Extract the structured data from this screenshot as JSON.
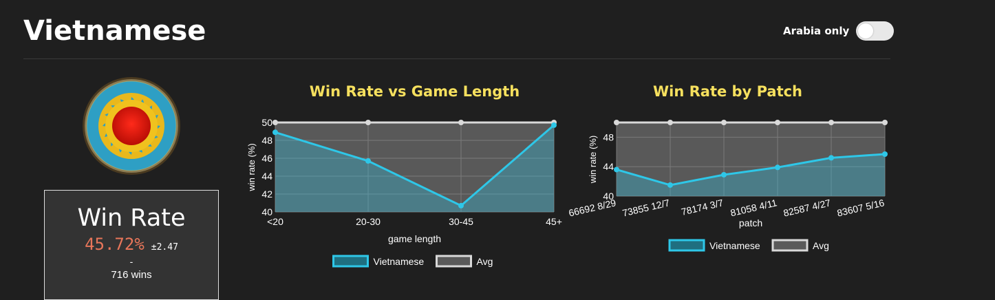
{
  "header": {
    "title": "Vietnamese",
    "toggle_label": "Arabia only",
    "toggle_on": false
  },
  "summary": {
    "heading": "Win Rate",
    "win_rate": "45.72%",
    "error": "±2.47",
    "dash": "-",
    "wins": "716 wins"
  },
  "colors": {
    "series": "#2ec7e8",
    "avg": "#d9d9d9",
    "title": "#f6e05e",
    "win_rate": "#e8765a"
  },
  "emblem": {
    "icon": "vietnamese-emblem-icon"
  },
  "chart_data": [
    {
      "type": "line",
      "title": "Win Rate vs Game Length",
      "xlabel": "game length",
      "ylabel": "win rate (%)",
      "categories": [
        "<20",
        "20-30",
        "30-45",
        "45+"
      ],
      "ylim": [
        40,
        50
      ],
      "yticks": [
        40,
        42,
        44,
        46,
        48,
        50
      ],
      "series": [
        {
          "name": "Vietnamese",
          "values": [
            48.9,
            45.7,
            40.7,
            49.7
          ]
        },
        {
          "name": "Avg",
          "values": [
            50,
            50,
            50,
            50
          ]
        }
      ],
      "legend": "bottom",
      "grid": true
    },
    {
      "type": "line",
      "title": "Win Rate by Patch",
      "xlabel": "patch",
      "ylabel": "win rate (%)",
      "categories": [
        "66692 8/29",
        "73855 12/7",
        "78174 3/7",
        "81058 4/11",
        "82587 4/27",
        "83607 5/16"
      ],
      "ylim": [
        40,
        50
      ],
      "yticks": [
        40,
        44,
        48
      ],
      "series": [
        {
          "name": "Vietnamese",
          "values": [
            43.6,
            41.5,
            42.9,
            43.9,
            45.2,
            45.7
          ]
        },
        {
          "name": "Avg",
          "values": [
            50,
            50,
            50,
            50,
            50,
            50
          ]
        }
      ],
      "legend": "bottom",
      "grid": true
    }
  ]
}
